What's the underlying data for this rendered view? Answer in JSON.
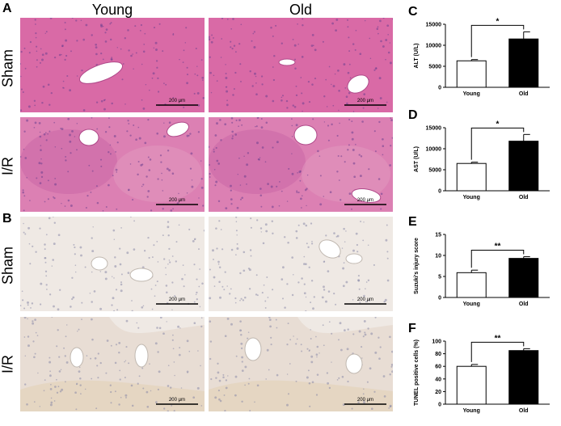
{
  "panels": {
    "A": "A",
    "B": "B",
    "C": "C",
    "D": "D",
    "E": "E",
    "F": "F"
  },
  "column_headers": [
    "Young",
    "Old"
  ],
  "row_labels": [
    "Sham",
    "I/R",
    "Sham",
    "I/R"
  ],
  "scale_bar_label": "200 μm",
  "colors": {
    "he_pink": "#d9669f",
    "he_dark": "#c0508f",
    "ihc_bg": "#f0ece8",
    "ihc_brown": "#d6c3a5",
    "young_bar": "#ffffff",
    "old_bar": "#000000"
  },
  "chart_data": [
    {
      "panel": "C",
      "type": "bar",
      "categories": [
        "Young",
        "Old"
      ],
      "values": [
        6300,
        11500
      ],
      "errors": [
        300,
        1700
      ],
      "ylabel": "ALT (U/L)",
      "ylim": [
        0,
        15000
      ],
      "yticks": [
        0,
        5000,
        10000,
        15000
      ],
      "significance": "*"
    },
    {
      "panel": "D",
      "type": "bar",
      "categories": [
        "Young",
        "Old"
      ],
      "values": [
        6500,
        11800
      ],
      "errors": [
        300,
        1600
      ],
      "ylabel": "AST (U/L)",
      "ylim": [
        0,
        15000
      ],
      "yticks": [
        0,
        5000,
        10000,
        15000
      ],
      "significance": "*"
    },
    {
      "panel": "E",
      "type": "bar",
      "categories": [
        "Young",
        "Old"
      ],
      "values": [
        5.9,
        9.3
      ],
      "errors": [
        0.6,
        0.4
      ],
      "ylabel": "Suzuki's injury score",
      "ylim": [
        0,
        15
      ],
      "yticks": [
        0,
        5,
        10,
        15
      ],
      "significance": "**"
    },
    {
      "panel": "F",
      "type": "bar",
      "categories": [
        "Young",
        "Old"
      ],
      "values": [
        60,
        85
      ],
      "errors": [
        3,
        3
      ],
      "ylabel": "TUNEL positive cells (%)",
      "ylim": [
        0,
        100
      ],
      "yticks": [
        0,
        20,
        40,
        60,
        80,
        100
      ],
      "significance": "**"
    }
  ]
}
